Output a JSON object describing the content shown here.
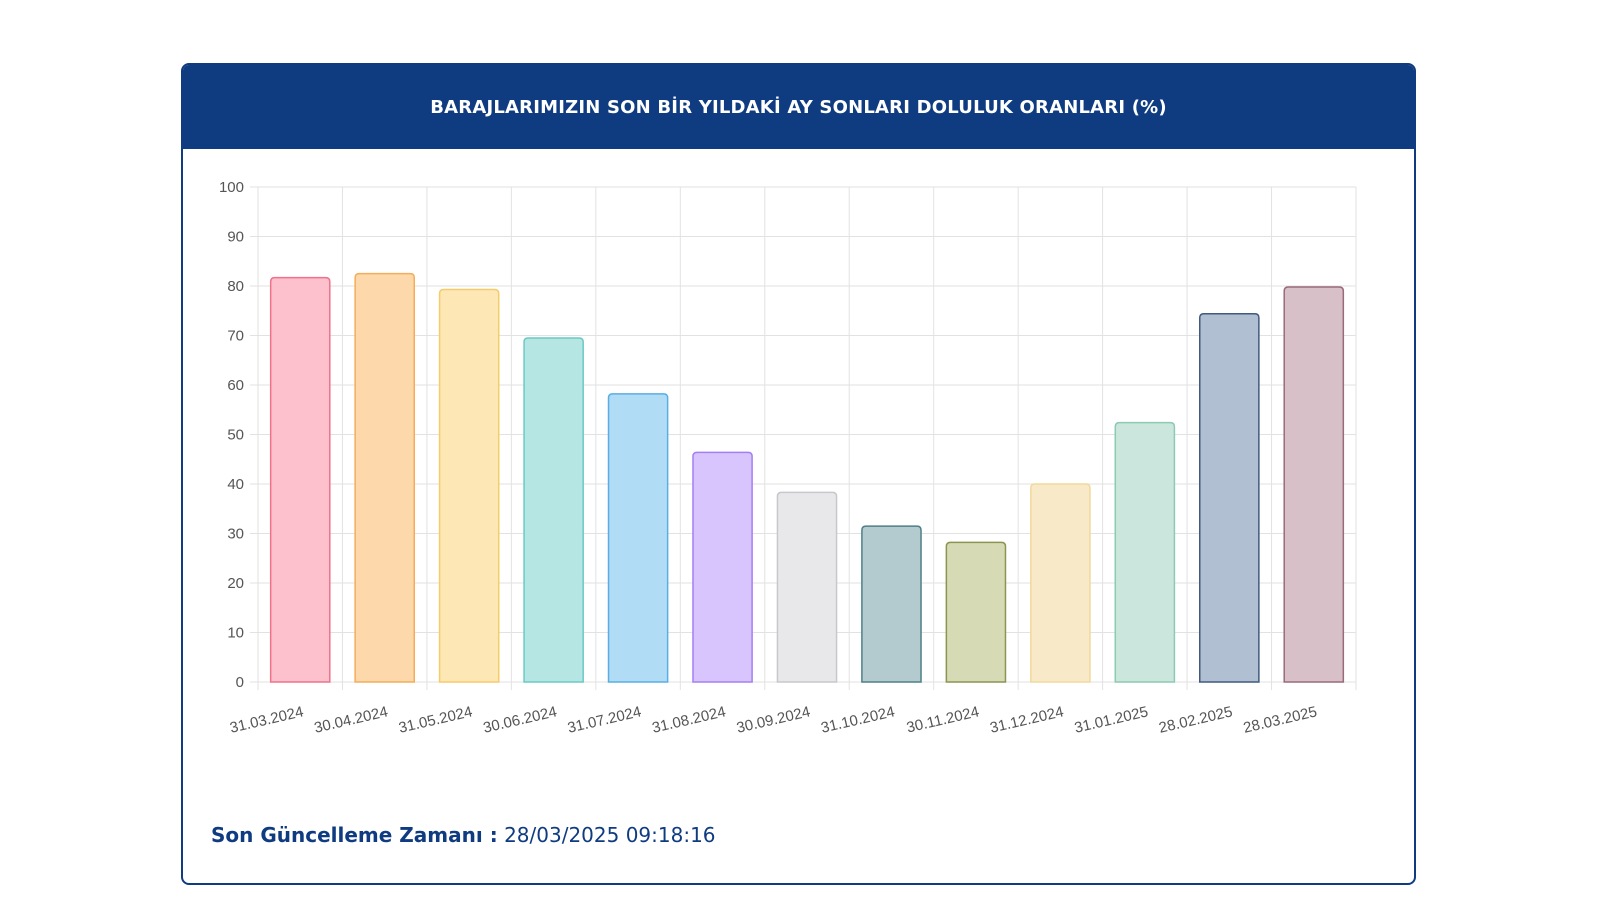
{
  "header": {
    "title": "BARAJLARIMIZIN SON BİR YILDAKİ AY SONLARI DOLULUK ORANLARI (%)"
  },
  "footer": {
    "label": "Son Güncelleme Zamanı :",
    "value": "28/03/2025 09:18:16"
  },
  "colors": {
    "header_bg": "#0f3b80",
    "grid": "#e2e2e2"
  },
  "chart_data": {
    "type": "bar",
    "title": "BARAJLARIMIZIN SON BİR YILDAKİ AY SONLARI DOLULUK ORANLARI (%)",
    "xlabel": "",
    "ylabel": "",
    "ylim": [
      0,
      100
    ],
    "yticks": [
      0,
      10,
      20,
      30,
      40,
      50,
      60,
      70,
      80,
      90,
      100
    ],
    "grid": true,
    "legend": "none",
    "categories": [
      "31.03.2024",
      "30.04.2024",
      "31.05.2024",
      "30.06.2024",
      "31.07.2024",
      "31.08.2024",
      "30.09.2024",
      "31.10.2024",
      "30.11.2024",
      "31.12.2024",
      "31.01.2025",
      "28.02.2025",
      "28.03.2025"
    ],
    "values": [
      81.7,
      82.5,
      79.3,
      69.5,
      58.2,
      46.4,
      38.3,
      31.5,
      28.2,
      40.0,
      52.4,
      74.4,
      79.8
    ],
    "fill_colors": [
      "#fdc0cd",
      "#fcd8ab",
      "#fde7b5",
      "#b6e6e4",
      "#b0dcf6",
      "#d8c5fd",
      "#e8e8ea",
      "#b3cbcf",
      "#d6dab5",
      "#f8eac9",
      "#cbe6dc",
      "#b0bfd2",
      "#d8c0c8"
    ],
    "border_colors": [
      "#f0728a",
      "#f4ad5b",
      "#f6cc6a",
      "#6acac4",
      "#5aaee3",
      "#a57ef6",
      "#c8c8cc",
      "#4f7f88",
      "#8c9450",
      "#f0d99a",
      "#8ccab2",
      "#415a7e",
      "#9a6a7a"
    ]
  }
}
